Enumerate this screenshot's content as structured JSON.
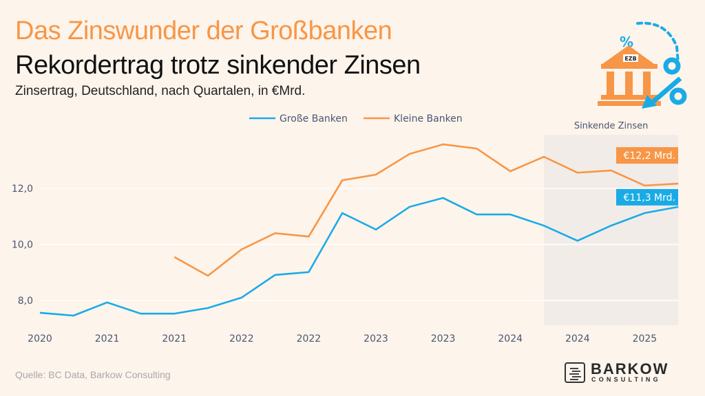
{
  "header": {
    "title": "Das Zinswunder der Großbanken",
    "headline": "Rekordertrag trotz sinkender Zinsen",
    "subtitle": "Zinsertrag, Deutschland, nach Quartalen, in €Mrd."
  },
  "footer": {
    "source": "Quelle: BC Data, Barkow Consulting",
    "logo_name": "BARKOW",
    "logo_sub": "CONSULTING"
  },
  "icon": {
    "semantic": "bank-interest-rate-icon",
    "label": "EZB"
  },
  "colors": {
    "background": "#fdf4ec",
    "big_banks": "#1aabe6",
    "small_banks": "#f79646",
    "shade": "#f1ece8",
    "gridline": "#ffffff"
  },
  "chart_data": {
    "type": "line",
    "title": "Das Zinswunder der Großbanken",
    "subtitle": "Zinsertrag, Deutschland, nach Quartalen, in €Mrd.",
    "xlabel": "",
    "ylabel": "",
    "x_tick_labels": [
      "2020",
      "2021",
      "2021",
      "2022",
      "2022",
      "2023",
      "2023",
      "2024",
      "2024",
      "2025"
    ],
    "x_tick_every": 2,
    "ylim": [
      7.1,
      13.9
    ],
    "yticks": [
      8.0,
      10.0,
      12.0
    ],
    "ytick_labels": [
      "8,0",
      "10,0",
      "12,0"
    ],
    "grid": "horizontal",
    "legend": {
      "position": "top-center",
      "entries": [
        "Große Banken",
        "Kleine Banken"
      ]
    },
    "x_count": 20,
    "series": [
      {
        "name": "Große Banken",
        "color": "#1aabe6",
        "values": [
          7.56,
          7.46,
          7.93,
          7.53,
          7.53,
          7.73,
          8.1,
          8.91,
          9.01,
          11.12,
          10.53,
          11.34,
          11.66,
          11.07,
          11.07,
          10.67,
          10.13,
          10.67,
          11.12,
          11.34
        ],
        "end_label": "€11,3 Mrd."
      },
      {
        "name": "Kleine Banken",
        "color": "#f79646",
        "values": [
          null,
          null,
          null,
          null,
          9.55,
          8.88,
          9.82,
          10.4,
          10.28,
          12.29,
          12.49,
          13.23,
          13.57,
          13.42,
          12.61,
          13.13,
          12.56,
          12.64,
          12.1,
          12.17
        ],
        "end_label": "€12,2 Mrd."
      }
    ],
    "annotations": [
      {
        "type": "shaded-region",
        "label": "Sinkende Zinsen",
        "from_index": 15,
        "to_index": 19
      }
    ]
  }
}
